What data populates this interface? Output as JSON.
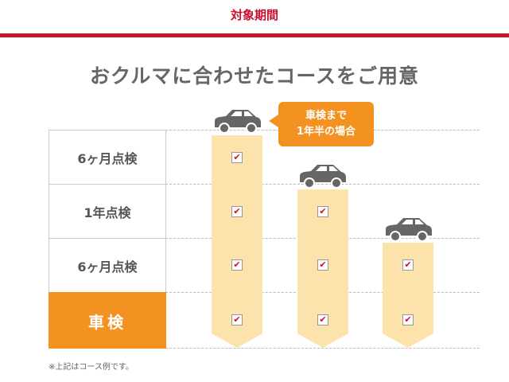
{
  "header": {
    "title": "対象期間"
  },
  "heading": "おクルマに合わせたコースをご用意",
  "rows": [
    {
      "label": "6ヶ月点検"
    },
    {
      "label": "1年点検"
    },
    {
      "label": "6ヶ月点検"
    },
    {
      "label": "車検"
    }
  ],
  "callout": {
    "line1": "車検まで",
    "line2": "1年半の場合"
  },
  "check_mark": "✔",
  "note": "※上記はコース例です。",
  "colors": {
    "accent_red": "#c8102e",
    "orange": "#f39221",
    "bar": "#fbe3ab"
  }
}
